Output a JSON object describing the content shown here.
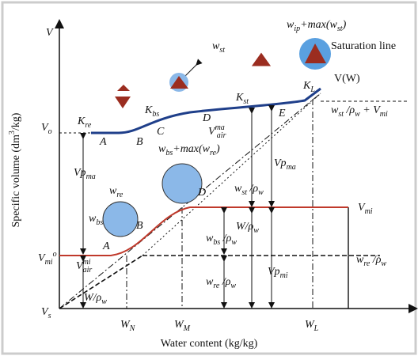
{
  "labels": [
    {
      "parts": [
        [
          "V"
        ]
      ]
    },
    {
      "parts": [
        [
          "V"
        ],
        [
          "o",
          "sub"
        ]
      ]
    },
    {
      "parts": [
        [
          "V"
        ],
        [
          "mi",
          "sub"
        ],
        [
          "o",
          "sup"
        ]
      ]
    },
    {
      "parts": [
        [
          "V"
        ],
        [
          "s",
          "sub"
        ]
      ]
    },
    {
      "parts": [
        [
          "K"
        ],
        [
          "re",
          "sub"
        ]
      ]
    },
    {
      "parts": [
        [
          "A"
        ]
      ]
    },
    {
      "parts": [
        [
          "B"
        ]
      ]
    },
    {
      "parts": [
        [
          "K"
        ],
        [
          "bs",
          "sub"
        ]
      ]
    },
    {
      "parts": [
        [
          "C"
        ]
      ]
    },
    {
      "parts": [
        [
          "D"
        ]
      ]
    },
    {
      "parts": [
        [
          "K"
        ],
        [
          "st",
          "sub"
        ]
      ]
    },
    {
      "parts": [
        [
          "E"
        ]
      ]
    },
    {
      "parts": [
        [
          "K"
        ],
        [
          "L",
          "sub"
        ]
      ]
    },
    {
      "parts": [
        [
          "V(W)"
        ]
      ]
    },
    {
      "parts": [
        [
          "Saturation line"
        ]
      ]
    },
    {
      "parts": [
        [
          "w"
        ],
        [
          "ip",
          "sub"
        ],
        [
          "+max(w"
        ],
        [
          "st",
          "sub"
        ],
        [
          ")"
        ]
      ]
    },
    {
      "parts": [
        [
          "w"
        ],
        [
          "st",
          "sub"
        ]
      ]
    },
    {
      "parts": [
        [
          "w"
        ],
        [
          "bs",
          "sub"
        ],
        [
          "+max(w"
        ],
        [
          "re",
          "sub"
        ],
        [
          ")"
        ]
      ]
    },
    {
      "parts": [
        [
          "w"
        ],
        [
          "re",
          "sub"
        ]
      ]
    },
    {
      "parts": [
        [
          "w"
        ],
        [
          "bs",
          "sub"
        ]
      ]
    },
    {
      "parts": [
        [
          "Vp"
        ],
        [
          "ma",
          "sub"
        ]
      ]
    },
    {
      "parts": [
        [
          "V"
        ],
        [
          "ma",
          "sup"
        ],
        [
          "air",
          "sub"
        ]
      ]
    },
    {
      "parts": [
        [
          "Vp"
        ],
        [
          "ma",
          "sub"
        ]
      ]
    },
    {
      "parts": [
        [
          "w"
        ],
        [
          "st",
          "sub"
        ],
        [
          " /ρ"
        ],
        [
          "w",
          "sub"
        ]
      ]
    },
    {
      "parts": [
        [
          "D"
        ]
      ]
    },
    {
      "parts": [
        [
          "B"
        ]
      ]
    },
    {
      "parts": [
        [
          "A"
        ]
      ]
    },
    {
      "parts": [
        [
          "V"
        ],
        [
          "mi",
          "sub"
        ]
      ]
    },
    {
      "parts": [
        [
          "w"
        ],
        [
          "st",
          "sub"
        ],
        [
          " /ρ"
        ],
        [
          "w",
          "sub"
        ],
        [
          " + V"
        ],
        [
          "mi",
          "sub"
        ]
      ]
    },
    {
      "parts": [
        [
          "W/ρ"
        ],
        [
          "w",
          "sub"
        ]
      ]
    },
    {
      "parts": [
        [
          "w"
        ],
        [
          "bs",
          "sub"
        ],
        [
          " /ρ"
        ],
        [
          "w",
          "sub"
        ]
      ]
    },
    {
      "parts": [
        [
          "w"
        ],
        [
          "re",
          "sub"
        ],
        [
          " /ρ"
        ],
        [
          "w",
          "sub"
        ]
      ]
    },
    {
      "parts": [
        [
          "V"
        ],
        [
          "mi",
          "sup"
        ],
        [
          "air",
          "sub"
        ]
      ]
    },
    {
      "parts": [
        [
          "W/ρ"
        ],
        [
          "w",
          "sub"
        ]
      ]
    },
    {
      "parts": [
        [
          "w"
        ],
        [
          "re",
          "sub"
        ],
        [
          " /ρ"
        ],
        [
          "w",
          "sub"
        ]
      ]
    },
    {
      "parts": [
        [
          "Vp"
        ],
        [
          "mi",
          "sub"
        ]
      ]
    },
    {
      "parts": [
        [
          "W"
        ],
        [
          "N",
          "sub"
        ]
      ]
    },
    {
      "parts": [
        [
          "W"
        ],
        [
          "M",
          "sub"
        ]
      ]
    },
    {
      "parts": [
        [
          "W"
        ],
        [
          "L",
          "sub"
        ]
      ]
    },
    {
      "parts": [
        [
          "Water content (kg/kg)"
        ]
      ]
    },
    {
      "parts": [
        [
          "Specific volume (dm"
        ],
        [
          "3",
          "sup"
        ],
        [
          "/kg)"
        ]
      ]
    }
  ]
}
